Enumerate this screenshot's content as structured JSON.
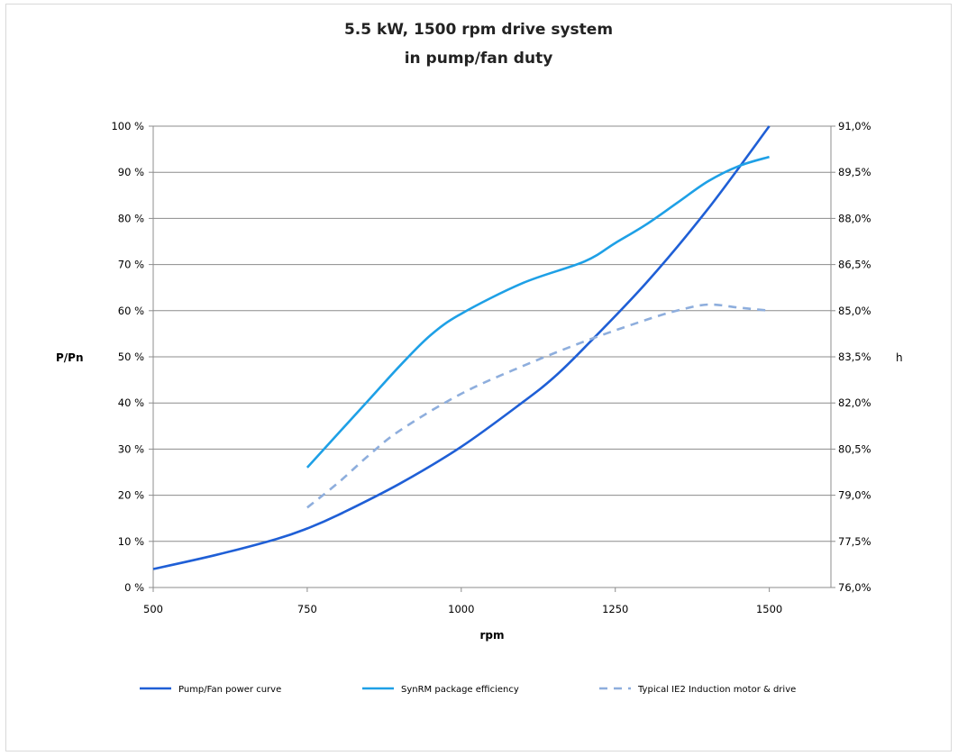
{
  "chart_data": {
    "type": "line",
    "title_lines": [
      "5.5 kW, 1500 rpm drive system",
      "in pump/fan duty"
    ],
    "xlabel": "rpm",
    "ylabel_left": "P/Pn",
    "ylabel_right": "h",
    "xlim": [
      500,
      1600
    ],
    "x_ticks": [
      "500",
      "750",
      "1000",
      "1250",
      "1500"
    ],
    "ylim_left": [
      0,
      100
    ],
    "y_ticks_left": [
      "0 %",
      "10 %",
      "20 %",
      "30 %",
      "40 %",
      "50 %",
      "60 %",
      "70 %",
      "80 %",
      "90 %",
      "100 %"
    ],
    "ylim_right": [
      76.0,
      91.0
    ],
    "y_ticks_right": [
      "76,0%",
      "77,5%",
      "79,0%",
      "80,5%",
      "82,0%",
      "83,5%",
      "85,0%",
      "86,5%",
      "88,0%",
      "89,5%",
      "91,0%"
    ],
    "grid": "horizontal",
    "legend_position": "bottom",
    "series": [
      {
        "name": "Pump/Fan power curve",
        "axis": "left",
        "color": "#1f5fd6",
        "style": "solid",
        "x": [
          500,
          600,
          700,
          750,
          800,
          900,
          1000,
          1100,
          1150,
          1200,
          1300,
          1400,
          1500
        ],
        "y": [
          4,
          7,
          10.5,
          12.8,
          15.7,
          22.5,
          30.5,
          40.2,
          45.5,
          52,
          66,
          82,
          100
        ]
      },
      {
        "name": "SynRM package efficiency",
        "axis": "right",
        "color": "#1ea0e6",
        "style": "solid",
        "x": [
          750,
          800,
          850,
          900,
          950,
          1000,
          1100,
          1200,
          1250,
          1300,
          1350,
          1400,
          1450,
          1500
        ],
        "y": [
          79.9,
          81.0,
          82.1,
          83.2,
          84.2,
          84.9,
          85.9,
          86.6,
          87.2,
          87.8,
          88.5,
          89.2,
          89.7,
          90.0
        ]
      },
      {
        "name": "Typical IE2 Induction motor & drive",
        "axis": "right",
        "color": "#8eaedd",
        "style": "dashed",
        "x": [
          750,
          800,
          850,
          900,
          1000,
          1100,
          1200,
          1300,
          1350,
          1400,
          1450,
          1500
        ],
        "y": [
          78.6,
          79.4,
          80.3,
          81.1,
          82.3,
          83.2,
          84.0,
          84.7,
          85.0,
          85.2,
          85.1,
          85.0
        ]
      }
    ]
  }
}
